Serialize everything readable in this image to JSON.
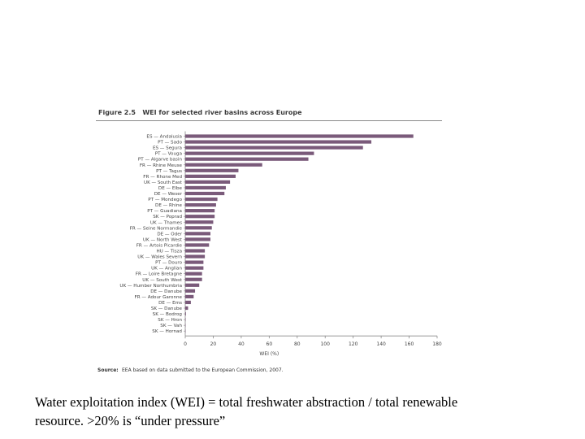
{
  "figure": {
    "label": "Figure 2.5",
    "title": "WEI for selected river basins across Europe"
  },
  "source": {
    "label": "Source:",
    "text": "EEA based on data submitted to the European Commission, 2007."
  },
  "caption": {
    "line1": "Water exploitation index (WEI) = total freshwater abstraction / total renewable",
    "line2": "resource. >20% is “under pressure”"
  },
  "colors": {
    "bar": "#7a5a7a",
    "axis": "#888888",
    "text": "#444444"
  },
  "chart_data": {
    "type": "bar",
    "orientation": "horizontal",
    "title": "WEI for selected river basins across Europe",
    "xlabel": "WEI (%)",
    "ylabel": "",
    "xlim": [
      0,
      180
    ],
    "xticks": [
      0,
      20,
      40,
      60,
      80,
      100,
      120,
      140,
      160,
      180
    ],
    "categories": [
      "ES — Andalusia",
      "PT — Sado",
      "ES — Segura",
      "PT — Vouga",
      "PT — Algarve basin",
      "FR — Rhine Meuse",
      "PT — Tagus",
      "FR — Rhone Med",
      "UK — South East",
      "DE — Elbe",
      "DE — Weser",
      "PT — Mondego",
      "DE — Rhine",
      "PT — Guadiana",
      "SK — Poprad",
      "UK — Thames",
      "FR — Seine Normandie",
      "DE — Oder",
      "UK — North West",
      "FR — Artois Picardie",
      "HU — Tisza",
      "UK — Wales Severn",
      "PT — Douro",
      "UK — Anglian",
      "FR — Loire Bretagne",
      "UK — South West",
      "UK — Humber Northumbria",
      "DE — Danube",
      "FR — Adour Garonne",
      "DE — Ems",
      "SK — Danube",
      "SK — Bodrog",
      "SK — Hron",
      "SK — Vah",
      "SK — Hornad"
    ],
    "values": [
      163,
      133,
      127,
      92,
      88,
      55,
      38,
      36,
      32,
      29,
      28,
      23,
      22,
      21,
      21,
      20,
      19,
      18,
      18,
      17,
      14,
      14,
      13,
      13,
      12,
      12,
      10,
      7,
      6,
      4,
      2,
      0.5,
      0.3,
      0.2,
      0.1
    ]
  }
}
